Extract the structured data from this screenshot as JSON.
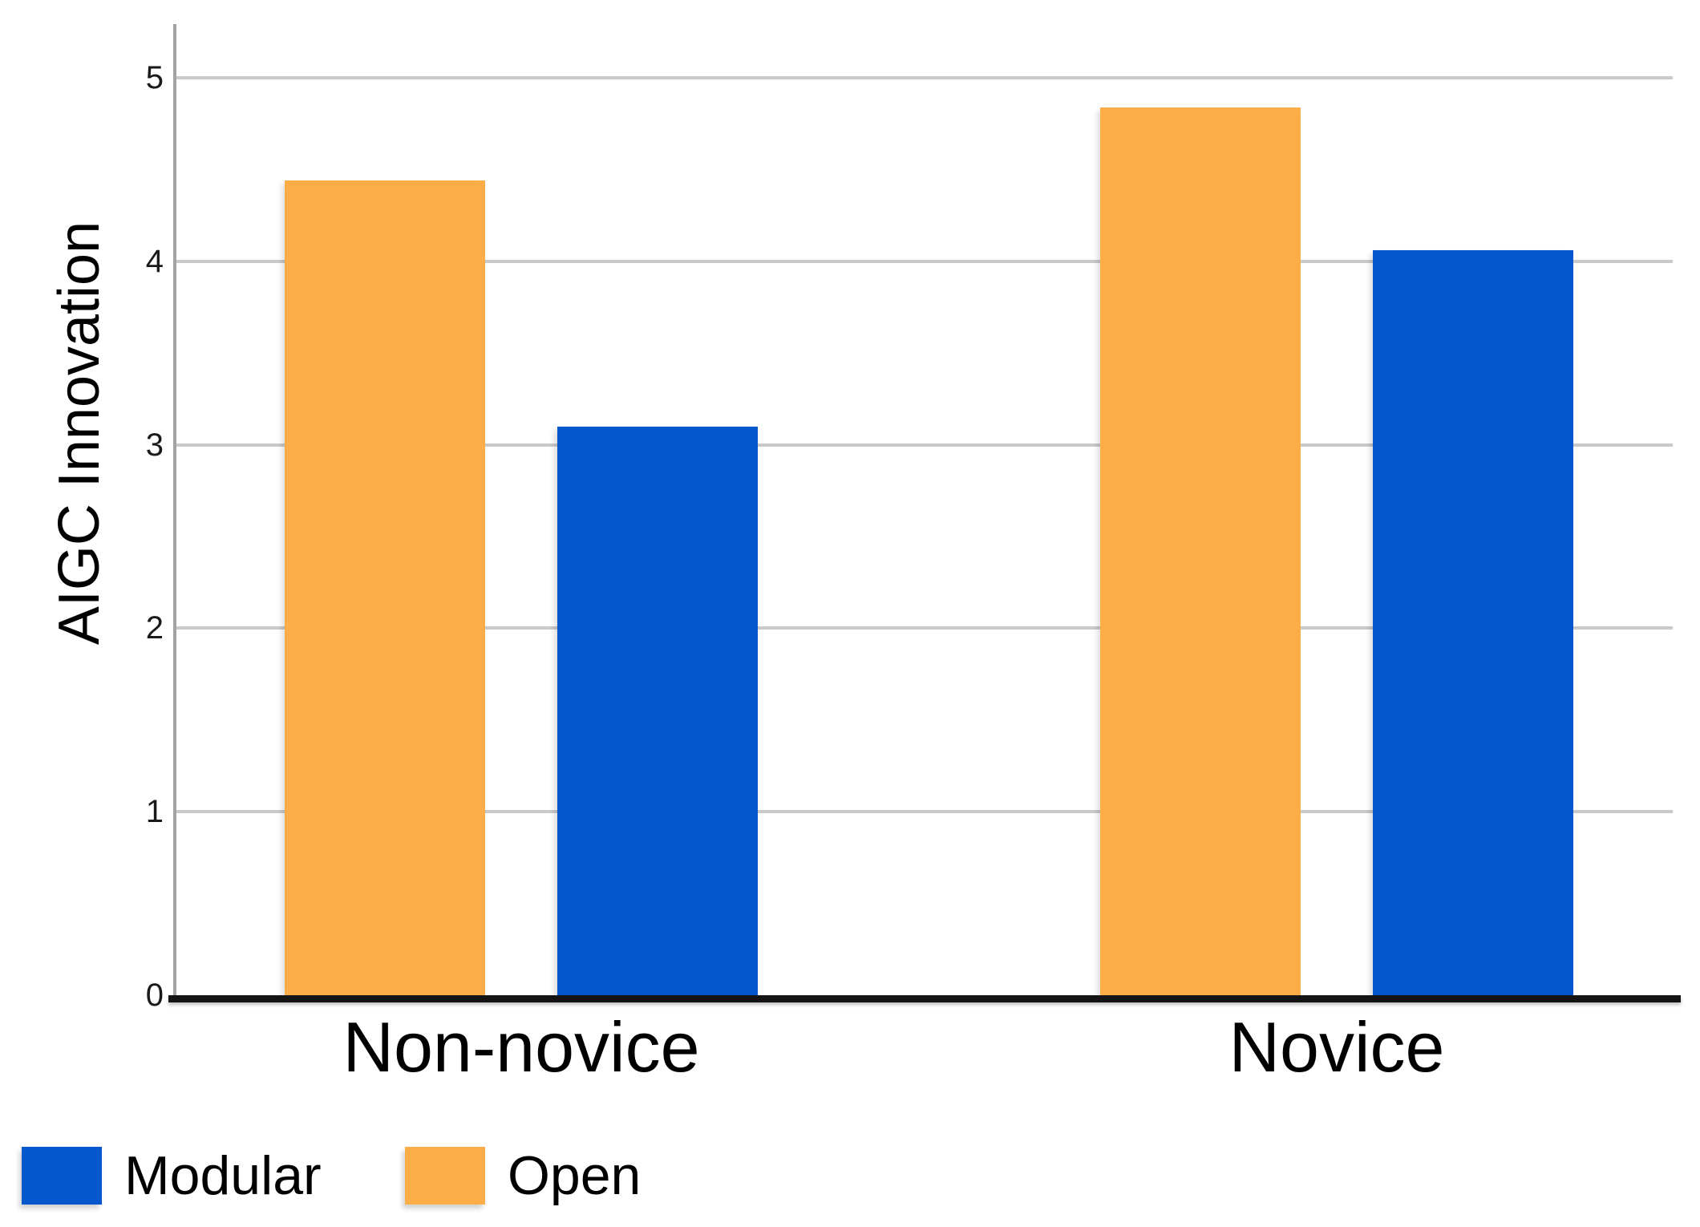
{
  "chart_data": {
    "type": "bar",
    "title": "",
    "ylabel": "AIGC Innovation",
    "xlabel": "",
    "categories": [
      "Non-novice",
      "Novice"
    ],
    "series": [
      {
        "name": "Open",
        "color": "#FBAE48",
        "values": [
          4.44,
          4.84
        ]
      },
      {
        "name": "Modular",
        "color": "#0457CC",
        "values": [
          3.1,
          4.06
        ]
      }
    ],
    "ylim": [
      0,
      5
    ],
    "yticks": [
      0,
      1,
      2,
      3,
      4,
      5
    ],
    "ytick_labels": [
      "0",
      "1",
      "2",
      "3",
      "4",
      "5"
    ],
    "grid": true,
    "legend_position": "bottom-left"
  },
  "legend": {
    "items": [
      {
        "label": "Modular",
        "color": "#0457CC"
      },
      {
        "label": "Open",
        "color": "#FBAE48"
      }
    ]
  },
  "colors": {
    "axis": "#a3a3a3",
    "gridline": "#c9c9c9",
    "baseline": "#141414",
    "text": "#000000"
  }
}
